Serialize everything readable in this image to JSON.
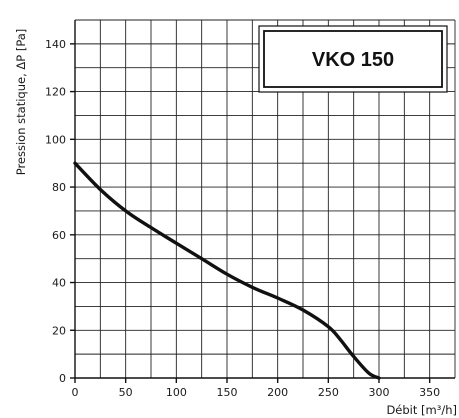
{
  "model_box": {
    "label": "VKO 150"
  },
  "chart_data": {
    "type": "line",
    "title": "",
    "ylabel": "Pression statique, ΔP [Pa]",
    "xlabel": "Débit  [m³/h]",
    "xlim": [
      0,
      375
    ],
    "ylim": [
      0,
      150
    ],
    "x_ticks": [
      0,
      50,
      100,
      150,
      200,
      250,
      300,
      350
    ],
    "y_ticks": [
      0,
      20,
      40,
      60,
      80,
      100,
      120,
      140
    ],
    "x_grid_step": 25,
    "y_grid_step": 10,
    "grid": true,
    "series": [
      {
        "name": "",
        "x": [
          0,
          25,
          50,
          75,
          100,
          125,
          150,
          175,
          200,
          225,
          250,
          262,
          275,
          290,
          300
        ],
        "y": [
          90,
          79,
          70,
          63,
          56.5,
          50,
          43.5,
          38,
          33.5,
          28.5,
          21.5,
          16,
          9,
          2,
          0
        ]
      }
    ]
  }
}
